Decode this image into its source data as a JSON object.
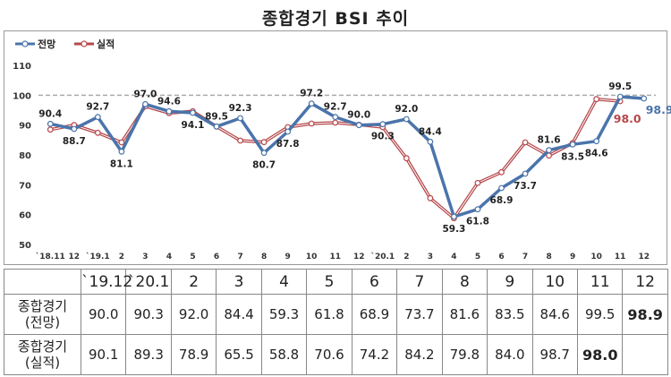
{
  "title": "종합경기 BSI 추이",
  "chart_data": {
    "type": "line",
    "categories": [
      "`18.11",
      "12",
      "`19.1",
      "2",
      "3",
      "4",
      "5",
      "6",
      "7",
      "8",
      "9",
      "10",
      "11",
      "12",
      "`20.1",
      "2",
      "3",
      "4",
      "5",
      "6",
      "7",
      "8",
      "9",
      "10",
      "11",
      "12"
    ],
    "series": [
      {
        "name": "전망",
        "color": "#4a74ab",
        "values": [
          90.4,
          88.7,
          92.7,
          81.1,
          97.0,
          94.6,
          94.1,
          89.5,
          92.3,
          80.7,
          87.8,
          97.2,
          92.7,
          90.0,
          90.3,
          92.0,
          84.4,
          59.3,
          61.8,
          68.9,
          73.7,
          81.6,
          83.5,
          84.6,
          99.5,
          98.9
        ]
      },
      {
        "name": "실적",
        "color": "#b5474a",
        "values": [
          88.5,
          90.0,
          87.4,
          84.2,
          96.3,
          94.0,
          94.6,
          89.5,
          84.8,
          84.3,
          89.3,
          90.5,
          90.8,
          90.1,
          89.3,
          78.9,
          65.5,
          58.8,
          70.6,
          74.2,
          84.2,
          79.8,
          84.0,
          98.7,
          98.0,
          null
        ]
      }
    ],
    "labels_forecast": [
      "90.4",
      "88.7",
      "92.7",
      "81.1",
      "97.0",
      "94.6",
      "94.1",
      "89.5",
      "92.3",
      "80.7",
      "87.8",
      "97.2",
      "92.7",
      "90.0",
      "90.3",
      "92.0",
      "84.4",
      "59.3",
      "61.8",
      "68.9",
      "73.7",
      "81.6",
      "83.5",
      "84.6",
      "99.5",
      "98.9"
    ],
    "labels_actual_end": "98.0",
    "ylim": [
      50,
      110
    ],
    "yticks": [
      "50",
      "60",
      "70",
      "80",
      "90",
      "100",
      "110"
    ],
    "reference_line": 100,
    "legend_position": "top-left",
    "grid": false
  },
  "table": {
    "header": [
      "`19.12",
      "`20.1",
      "2",
      "3",
      "4",
      "5",
      "6",
      "7",
      "8",
      "9",
      "10",
      "11",
      "12"
    ],
    "rows": [
      {
        "label_line1": "종합경기",
        "label_line2": "(전망)",
        "values": [
          "90.0",
          "90.3",
          "92.0",
          "84.4",
          "59.3",
          "61.8",
          "68.9",
          "73.7",
          "81.6",
          "83.5",
          "84.6",
          "99.5",
          "98.9"
        ]
      },
      {
        "label_line1": "종합경기",
        "label_line2": "(실적)",
        "values": [
          "90.1",
          "89.3",
          "78.9",
          "65.5",
          "58.8",
          "70.6",
          "74.2",
          "84.2",
          "79.8",
          "84.0",
          "98.7",
          "98.0",
          ""
        ]
      }
    ]
  },
  "colors": {
    "forecast": "#4a74ab",
    "actual": "#b5474a",
    "reference": "#aaaaaa"
  }
}
